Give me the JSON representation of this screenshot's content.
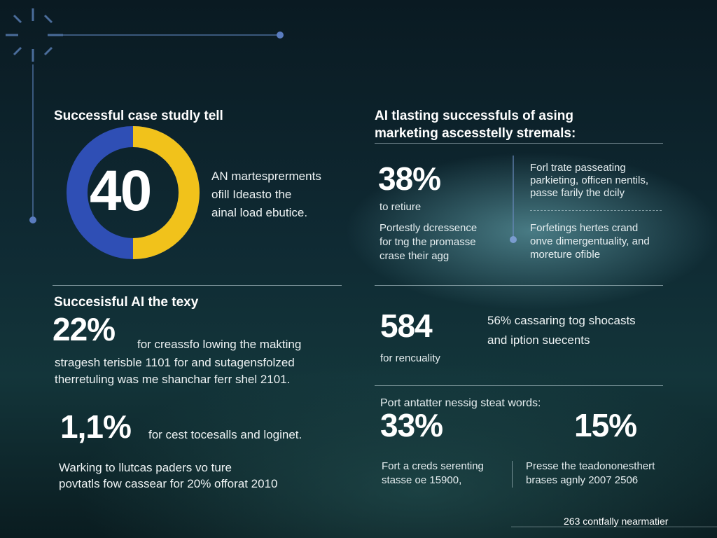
{
  "donut_block": {
    "title": "Successful case studly tell",
    "number": "40",
    "text": [
      "AN martesprerments",
      "ofill Ideasto the",
      "ainal load ebutice."
    ]
  },
  "right_top": {
    "title": [
      "AI tlasting successfuls of asing",
      "marketing ascesstelly stremals:"
    ],
    "stat": "38%",
    "stat_caption": "to retiure",
    "text_left": [
      "Portestly dcressence",
      "for tng the promasse",
      "crase their agg"
    ],
    "text_right_a": [
      "Forl trate passeating",
      "parkieting, officen nentils,",
      "passe farily the dcily"
    ],
    "text_right_b": [
      "Forfetings hertes crand",
      "onve dimergentuality, and",
      "moreture ofible"
    ]
  },
  "left_mid": {
    "title": "Succesisful AI the texy",
    "stat": "22%",
    "stat_caption": "for creassfo lowing the makting",
    "text": [
      "stragesh terisble 1101 for and sutagensfolzed",
      "therretuling was me shanchar ferr shel 2101."
    ]
  },
  "left_bottom": {
    "stat": "1,1%",
    "stat_caption": "for cest tocesalls and loginet.",
    "text": [
      "Warking to llutcas paders vo ture",
      "povtatls fow cassear for 20% offorat 2010"
    ]
  },
  "right_mid": {
    "stat": "584",
    "stat_caption": "for rencuality",
    "text": [
      "56% cassaring tog shocasts",
      "and iption suecents"
    ]
  },
  "right_bottom": {
    "title": "Port antatter nessig steat words:",
    "stats": [
      {
        "value": "33%",
        "text": [
          "Fort a creds serenting",
          "stasse oe 15900,"
        ]
      },
      {
        "value": "15%",
        "text": [
          "Presse the teadononesthert",
          "brases agnly 2007 2506"
        ]
      }
    ]
  },
  "footer": "263 contfally nearmatier"
}
